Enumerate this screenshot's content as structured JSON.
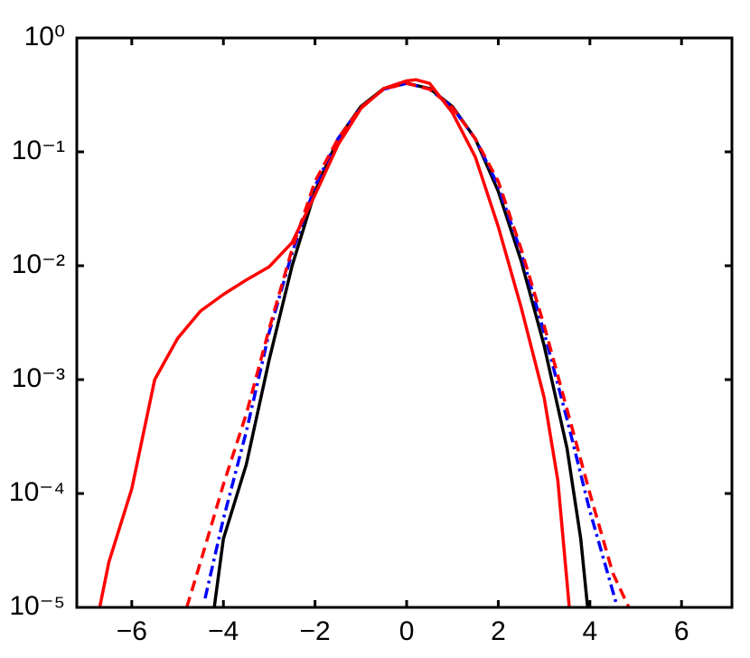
{
  "chart_data": {
    "type": "line",
    "yscale": "log",
    "xlim": [
      -7.2,
      7.1
    ],
    "ylim": [
      1e-05,
      1
    ],
    "xticks": [
      {
        "value": -6,
        "label": "−6"
      },
      {
        "value": -4,
        "label": "−4"
      },
      {
        "value": -2,
        "label": "−2"
      },
      0,
      2,
      4,
      6
    ],
    "yticks": [
      {
        "value": 1e-05,
        "label": "10⁻⁵"
      },
      {
        "value": 0.0001,
        "label": "10⁻⁴"
      },
      {
        "value": 0.001,
        "label": "10⁻³"
      },
      {
        "value": 0.01,
        "label": "10⁻²"
      },
      {
        "value": 0.1,
        "label": "10⁻¹"
      },
      {
        "value": 1,
        "label": "10⁰"
      }
    ],
    "series": [
      {
        "color": "#000000",
        "dash": "solid",
        "x": [
          -4.2,
          -4,
          -3.5,
          -3,
          -2.5,
          -2,
          -1.5,
          -1,
          -0.5,
          0,
          0.5,
          1,
          1.5,
          2,
          2.5,
          3,
          3.5,
          3.8,
          3.95
        ],
        "values": [
          1e-05,
          4e-05,
          0.00018,
          0.0015,
          0.01,
          0.045,
          0.13,
          0.25,
          0.36,
          0.4,
          0.36,
          0.25,
          0.13,
          0.045,
          0.011,
          0.002,
          0.00025,
          4e-05,
          1e-05
        ]
      },
      {
        "color": "#0000ff",
        "dash": "dashdot",
        "x": [
          -4.4,
          -4,
          -3.5,
          -3,
          -2.5,
          -2,
          -1.5,
          -1,
          -0.5,
          0,
          0.5,
          1,
          1.5,
          2,
          2.5,
          3,
          3.5,
          4,
          4.6
        ],
        "values": [
          1.2e-05,
          6e-05,
          0.00035,
          0.0026,
          0.013,
          0.05,
          0.13,
          0.245,
          0.355,
          0.4,
          0.355,
          0.245,
          0.13,
          0.05,
          0.013,
          0.0026,
          0.00045,
          7e-05,
          1e-05
        ]
      },
      {
        "color": "#ff0000",
        "dash": "dashed",
        "x": [
          -4.8,
          -4.5,
          -4,
          -3.5,
          -3,
          -2.5,
          -2,
          -1.5,
          -1,
          -0.5,
          0,
          0.5,
          1,
          1.5,
          2,
          2.5,
          3,
          3.5,
          4,
          4.5,
          4.85
        ],
        "values": [
          1e-05,
          2.5e-05,
          0.00012,
          0.0005,
          0.0028,
          0.014,
          0.055,
          0.13,
          0.245,
          0.355,
          0.4,
          0.355,
          0.245,
          0.13,
          0.055,
          0.014,
          0.003,
          0.00055,
          0.0001,
          2e-05,
          1e-05
        ]
      },
      {
        "color": "#ff0000",
        "dash": "solid",
        "x": [
          -6.7,
          -6.5,
          -6,
          -5.5,
          -5,
          -4.5,
          -4,
          -3.5,
          -3,
          -2.5,
          -2,
          -1.5,
          -1,
          -0.5,
          0,
          0.2,
          0.5,
          1,
          1.5,
          2,
          2.5,
          3,
          3.3,
          3.55
        ],
        "values": [
          1e-05,
          2.5e-05,
          0.00011,
          0.001,
          0.0023,
          0.004,
          0.0056,
          0.0075,
          0.0098,
          0.016,
          0.042,
          0.115,
          0.24,
          0.36,
          0.42,
          0.43,
          0.4,
          0.22,
          0.09,
          0.022,
          0.0043,
          0.0007,
          0.00013,
          1e-05
        ]
      }
    ]
  }
}
